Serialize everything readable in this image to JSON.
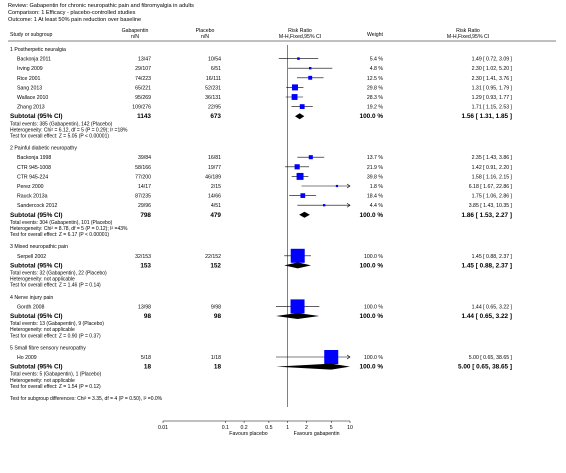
{
  "header": {
    "review": "Review:   Gabapentin for chronic neuropathic pain and fibromyalgia in adults",
    "comparison": "Comparison:   1 Efficacy - placebo-controlled studies",
    "outcome": "Outcome:   1 At least 50% pain reduction over baseline"
  },
  "columns": {
    "study": "Study or subgroup",
    "treat": "Gabapentin",
    "treat_sub": "n/N",
    "ctrl": "Placebo",
    "ctrl_sub": "n/N",
    "rr": "Risk Ratio",
    "rr_sub": "M-H,Fixed,95% CI",
    "weight": "Weight",
    "rr2": "Risk Ratio",
    "rr2_sub": "M-H,Fixed,95% CI"
  },
  "chart_data": {
    "type": "forest",
    "x_scale": "log",
    "xlim": [
      0.01,
      10
    ],
    "x_ticks": [
      "0.01",
      "0.1",
      "0.2",
      "0.5",
      "1",
      "2",
      "5",
      "10"
    ],
    "x_tick_values": [
      0.01,
      0.1,
      0.2,
      0.5,
      1,
      2,
      5,
      10
    ],
    "favours_left": "Favours placebo",
    "favours_right": "Favours gabapentin",
    "subgroups": [
      {
        "title": "1 Postherpetic neuralgia",
        "studies": [
          {
            "name": "Backonja 2011",
            "treat": "13/47",
            "ctrl": "10/54",
            "weight": "5.4 %",
            "rr_text": "1.49 [ 0.72, 3.09 ]",
            "rr": 1.49,
            "lo": 0.72,
            "hi": 3.09
          },
          {
            "name": "Irving 2009",
            "treat": "29/107",
            "ctrl": "6/51",
            "weight": "4.8 %",
            "rr_text": "2.30 [ 1.02, 5.20 ]",
            "rr": 2.3,
            "lo": 1.02,
            "hi": 5.2
          },
          {
            "name": "Rice 2001",
            "treat": "74/223",
            "ctrl": "16/111",
            "weight": "12.5 %",
            "rr_text": "2.30 [ 1.41, 3.76 ]",
            "rr": 2.3,
            "lo": 1.41,
            "hi": 3.76
          },
          {
            "name": "Sang 2013",
            "treat": "65/221",
            "ctrl": "52/231",
            "weight": "29.8 %",
            "rr_text": "1.31 [ 0.95, 1.79 ]",
            "rr": 1.31,
            "lo": 0.95,
            "hi": 1.79
          },
          {
            "name": "Wallace 2010",
            "treat": "95/269",
            "ctrl": "36/131",
            "weight": "28.3 %",
            "rr_text": "1.29 [ 0.93, 1.77 ]",
            "rr": 1.29,
            "lo": 0.93,
            "hi": 1.77
          },
          {
            "name": "Zhang 2013",
            "treat": "109/276",
            "ctrl": "22/95",
            "weight": "19.2 %",
            "rr_text": "1.71 [ 1.15, 2.53 ]",
            "rr": 1.71,
            "lo": 1.15,
            "hi": 2.53
          }
        ],
        "subtotal": {
          "label": "Subtotal (95% CI)",
          "treat": "1143",
          "ctrl": "673",
          "weight": "100.0 %",
          "rr_text": "1.56 [ 1.31, 1.85 ]",
          "rr": 1.56,
          "lo": 1.31,
          "hi": 1.85
        },
        "notes": [
          "Total events: 385 (Gabapentin), 142 (Placebo)",
          "Heterogeneity: Chi² = 6.12, df = 5 (P = 0.29); I² =18%",
          "Test for overall effect: Z = 5.05 (P < 0.00001)"
        ]
      },
      {
        "title": "2 Painful diabetic neuropathy",
        "studies": [
          {
            "name": "Backonja 1998",
            "treat": "39/84",
            "ctrl": "16/81",
            "weight": "13.7 %",
            "rr_text": "2.35 [ 1.43, 3.86 ]",
            "rr": 2.35,
            "lo": 1.43,
            "hi": 3.86
          },
          {
            "name": "CTR 945-1008",
            "treat": "58/166",
            "ctrl": "19/77",
            "weight": "21.9 %",
            "rr_text": "1.42 [ 0.91, 2.20 ]",
            "rr": 1.42,
            "lo": 0.91,
            "hi": 2.2
          },
          {
            "name": "CTR 945-224",
            "treat": "77/200",
            "ctrl": "46/189",
            "weight": "39.8 %",
            "rr_text": "1.58 [ 1.16, 2.15 ]",
            "rr": 1.58,
            "lo": 1.16,
            "hi": 2.15
          },
          {
            "name": "Perez 2000",
            "treat": "14/17",
            "ctrl": "2/15",
            "weight": "1.8 %",
            "rr_text": "6.18 [ 1.67, 22.86 ]",
            "rr": 6.18,
            "lo": 1.67,
            "hi": 22.86
          },
          {
            "name": "Rauck 2013a",
            "treat": "87/235",
            "ctrl": "14/66",
            "weight": "18.4 %",
            "rr_text": "1.75 [ 1.06, 2.86 ]",
            "rr": 1.75,
            "lo": 1.06,
            "hi": 2.86
          },
          {
            "name": "Sandercock 2012",
            "treat": "29/96",
            "ctrl": "4/51",
            "weight": "4.4 %",
            "rr_text": "3.85 [ 1.43, 10.35 ]",
            "rr": 3.85,
            "lo": 1.43,
            "hi": 10.35
          }
        ],
        "subtotal": {
          "label": "Subtotal (95% CI)",
          "treat": "798",
          "ctrl": "479",
          "weight": "100.0 %",
          "rr_text": "1.86 [ 1.53, 2.27 ]",
          "rr": 1.86,
          "lo": 1.53,
          "hi": 2.27
        },
        "notes": [
          "Total events: 304 (Gabapentin), 101 (Placebo)",
          "Heterogeneity: Chi² = 8.78, df = 5 (P = 0.12); I² =43%",
          "Test for overall effect: Z = 6.17 (P < 0.00001)"
        ]
      },
      {
        "title": "3 Mixed neuropathic pain",
        "studies": [
          {
            "name": "Serpell 2002",
            "treat": "32/153",
            "ctrl": "22/152",
            "weight": "100.0 %",
            "rr_text": "1.45 [ 0.88, 2.37 ]",
            "rr": 1.45,
            "lo": 0.88,
            "hi": 2.37
          }
        ],
        "subtotal": {
          "label": "Subtotal (95% CI)",
          "treat": "153",
          "ctrl": "152",
          "weight": "100.0 %",
          "rr_text": "1.45 [ 0.88, 2.37 ]",
          "rr": 1.45,
          "lo": 0.88,
          "hi": 2.37
        },
        "notes": [
          "Total events: 32 (Gabapentin), 22 (Placebo)",
          "Heterogeneity: not applicable",
          "Test for overall effect: Z = 1.46 (P = 0.14)"
        ]
      },
      {
        "title": "4 Nerve injury pain",
        "studies": [
          {
            "name": "Gordh 2008",
            "treat": "13/98",
            "ctrl": "9/98",
            "weight": "100.0 %",
            "rr_text": "1.44 [ 0.65, 3.22 ]",
            "rr": 1.44,
            "lo": 0.65,
            "hi": 3.22
          }
        ],
        "subtotal": {
          "label": "Subtotal (95% CI)",
          "treat": "98",
          "ctrl": "98",
          "weight": "100.0 %",
          "rr_text": "1.44 [ 0.65, 3.22 ]",
          "rr": 1.44,
          "lo": 0.65,
          "hi": 3.22
        },
        "notes": [
          "Total events: 13 (Gabapentin), 9 (Placebo)",
          "Heterogeneity: not applicable",
          "Test for overall effect: Z = 0.90 (P = 0.37)"
        ]
      },
      {
        "title": "5 Small fibre sensory neuropathy",
        "studies": [
          {
            "name": "Ho 2009",
            "treat": "5/18",
            "ctrl": "1/18",
            "weight": "100.0 %",
            "rr_text": "5.00 [ 0.65, 38.65 ]",
            "rr": 5.0,
            "lo": 0.65,
            "hi": 38.65
          }
        ],
        "subtotal": {
          "label": "Subtotal (95% CI)",
          "treat": "18",
          "ctrl": "18",
          "weight": "100.0 %",
          "rr_text": "5.00 [ 0.65, 38.65 ]",
          "rr": 5.0,
          "lo": 0.65,
          "hi": 38.65
        },
        "notes": [
          "Total events: 5 (Gabapentin), 1 (Placebo)",
          "Heterogeneity: not applicable",
          "Test for overall effect: Z = 1.54 (P = 0.12)"
        ]
      }
    ],
    "footer_note": "Test for subgroup differences: Chi² = 3.35, df = 4 (P = 0.50), I² =0.0%",
    "colors": {
      "marker": "#0000ff",
      "line": "#000000",
      "diamond": "#000000"
    }
  }
}
